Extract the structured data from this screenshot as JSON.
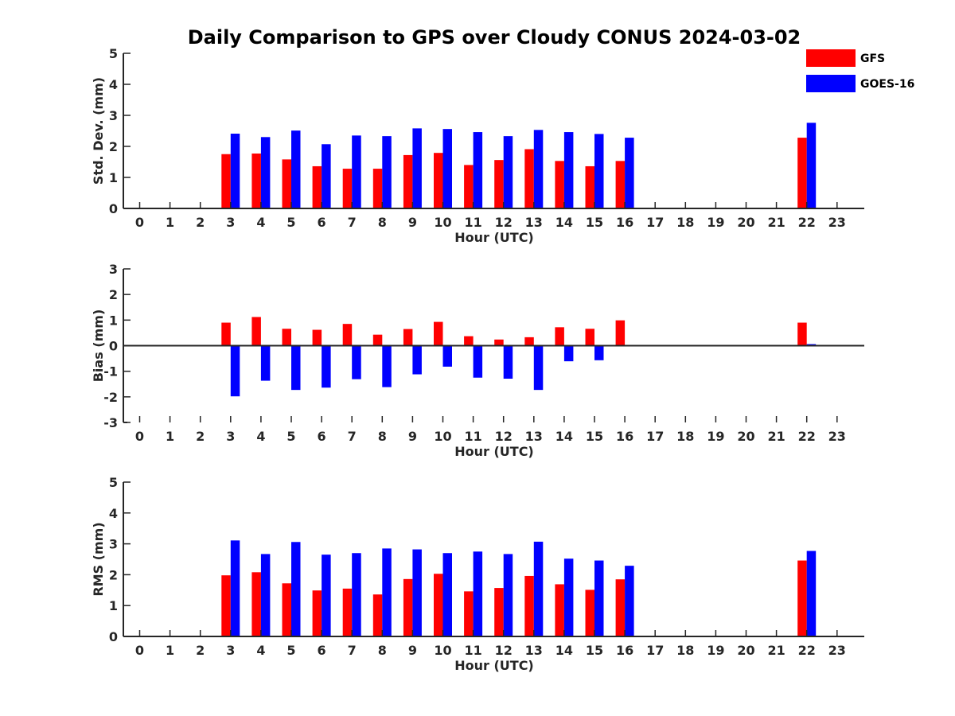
{
  "title": "Daily Comparison to GPS over Cloudy CONUS 2024-03-02",
  "colors": {
    "gfs": "#ff0000",
    "goes": "#0000ff",
    "axis": "#262626"
  },
  "chart_data": {
    "type": "bar",
    "title": "Daily Comparison to GPS over Cloudy CONUS 2024-03-02",
    "legend": {
      "position": "top-right",
      "entries": [
        "GFS",
        "GOES-16"
      ]
    },
    "x": [
      0,
      1,
      2,
      3,
      4,
      5,
      6,
      7,
      8,
      9,
      10,
      11,
      12,
      13,
      14,
      15,
      16,
      17,
      18,
      19,
      20,
      21,
      22,
      23
    ],
    "panels": [
      {
        "key": "std",
        "ylabel": "Std. Dev. (mm)",
        "xlabel": "Hour (UTC)",
        "ylim": [
          0,
          5
        ],
        "yticks": [
          0,
          1,
          2,
          3,
          4,
          5
        ],
        "series": [
          {
            "name": "GFS",
            "values": [
              null,
              null,
              null,
              1.75,
              1.77,
              1.58,
              1.36,
              1.28,
              1.28,
              1.72,
              1.79,
              1.4,
              1.56,
              1.91,
              1.53,
              1.36,
              1.53,
              null,
              null,
              null,
              null,
              null,
              2.28,
              null
            ]
          },
          {
            "name": "GOES-16",
            "values": [
              null,
              null,
              null,
              2.41,
              2.3,
              2.51,
              2.07,
              2.35,
              2.33,
              2.58,
              2.56,
              2.46,
              2.33,
              2.53,
              2.46,
              2.4,
              2.28,
              null,
              null,
              null,
              null,
              null,
              2.76,
              null
            ]
          }
        ]
      },
      {
        "key": "bias",
        "ylabel": "Bias (mm)",
        "xlabel": "Hour (UTC)",
        "ylim": [
          -3,
          3
        ],
        "yticks": [
          -3,
          -2,
          -1,
          0,
          1,
          2,
          3
        ],
        "series": [
          {
            "name": "GFS",
            "values": [
              null,
              null,
              null,
              0.9,
              1.12,
              0.66,
              0.62,
              0.85,
              0.43,
              0.65,
              0.93,
              0.37,
              0.24,
              0.33,
              0.72,
              0.66,
              0.99,
              null,
              null,
              null,
              null,
              null,
              0.9,
              null
            ]
          },
          {
            "name": "GOES-16",
            "values": [
              null,
              null,
              null,
              -1.98,
              -1.37,
              -1.73,
              -1.64,
              -1.31,
              -1.62,
              -1.12,
              -0.82,
              -1.25,
              -1.29,
              -1.73,
              -0.61,
              -0.57,
              null,
              null,
              null,
              null,
              null,
              null,
              0.06,
              null
            ]
          }
        ]
      },
      {
        "key": "rms",
        "ylabel": "RMS (mm)",
        "xlabel": "Hour (UTC)",
        "ylim": [
          0,
          5
        ],
        "yticks": [
          0,
          1,
          2,
          3,
          4,
          5
        ],
        "series": [
          {
            "name": "GFS",
            "values": [
              null,
              null,
              null,
              1.98,
              2.08,
              1.72,
              1.49,
              1.55,
              1.36,
              1.86,
              2.03,
              1.46,
              1.57,
              1.96,
              1.69,
              1.51,
              1.85,
              null,
              null,
              null,
              null,
              null,
              2.46,
              null
            ]
          },
          {
            "name": "GOES-16",
            "values": [
              null,
              null,
              null,
              3.11,
              2.67,
              3.06,
              2.65,
              2.7,
              2.85,
              2.82,
              2.7,
              2.75,
              2.67,
              3.07,
              2.52,
              2.46,
              2.29,
              null,
              null,
              null,
              null,
              null,
              2.77,
              null
            ]
          }
        ]
      }
    ]
  }
}
